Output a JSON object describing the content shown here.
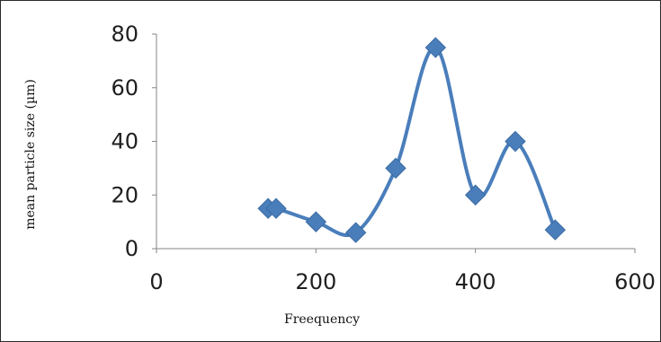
{
  "chart_data": {
    "type": "line",
    "title": "",
    "xlabel": "Freequency",
    "ylabel": "mean particle size (µm)",
    "xlim": [
      0,
      600
    ],
    "ylim": [
      0,
      80
    ],
    "xticks": [
      0,
      200,
      400,
      600
    ],
    "yticks": [
      0,
      20,
      40,
      60,
      80
    ],
    "grid": false,
    "legend": "none",
    "smooth": true,
    "marker": "diamond",
    "series": [
      {
        "color": "#4A7EBB",
        "x": [
          140,
          150,
          200,
          250,
          300,
          350,
          400,
          450,
          500
        ],
        "y": [
          15,
          15,
          10,
          6,
          30,
          75,
          20,
          40,
          7
        ]
      }
    ]
  }
}
